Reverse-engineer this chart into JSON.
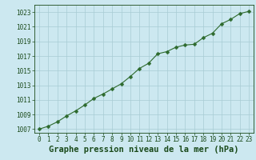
{
  "x": [
    0,
    1,
    2,
    3,
    4,
    5,
    6,
    7,
    8,
    9,
    10,
    11,
    12,
    13,
    14,
    15,
    16,
    17,
    18,
    19,
    20,
    21,
    22,
    23
  ],
  "y": [
    1007.0,
    1007.4,
    1008.0,
    1008.8,
    1009.5,
    1010.3,
    1011.2,
    1011.8,
    1012.5,
    1013.2,
    1014.2,
    1015.3,
    1016.0,
    1017.3,
    1017.6,
    1018.2,
    1018.5,
    1018.6,
    1019.5,
    1020.1,
    1021.4,
    1022.0,
    1022.8,
    1023.1
  ],
  "line_color": "#2d6a2d",
  "marker": "D",
  "marker_size": 2.5,
  "bg_color": "#cce8f0",
  "grid_color": "#a8ccd4",
  "xlabel": "Graphe pression niveau de la mer (hPa)",
  "xlabel_color": "#1a4a1a",
  "tick_color": "#1a4a1a",
  "ylim": [
    1006.5,
    1024.0
  ],
  "xlim": [
    -0.5,
    23.5
  ],
  "yticks": [
    1007,
    1009,
    1011,
    1013,
    1015,
    1017,
    1019,
    1021,
    1023
  ],
  "xticks": [
    0,
    1,
    2,
    3,
    4,
    5,
    6,
    7,
    8,
    9,
    10,
    11,
    12,
    13,
    14,
    15,
    16,
    17,
    18,
    19,
    20,
    21,
    22,
    23
  ],
  "tick_fontsize": 5.5,
  "xlabel_fontsize": 7.5
}
